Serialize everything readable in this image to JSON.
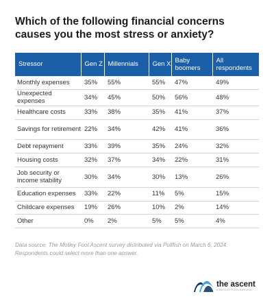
{
  "title": "Which of the following financial concerns causes you the most stress or anxiety?",
  "chart_data": {
    "type": "table",
    "columns": [
      "Stressor",
      "Gen Z",
      "Millennials",
      "Gen X",
      "Baby boomers",
      "All respondents"
    ],
    "rows": [
      {
        "stressor": "Monthly expenses",
        "values": [
          "35%",
          "55%",
          "55%",
          "47%",
          "49%"
        ]
      },
      {
        "stressor": "Unexpected expenses",
        "values": [
          "34%",
          "45%",
          "50%",
          "56%",
          "48%"
        ]
      },
      {
        "stressor": "Healthcare costs",
        "values": [
          "33%",
          "38%",
          "35%",
          "41%",
          "37%"
        ]
      },
      {
        "stressor": "Savings for retirement",
        "values": [
          "22%",
          "34%",
          "42%",
          "41%",
          "36%"
        ]
      },
      {
        "stressor": "Debt repayment",
        "values": [
          "33%",
          "39%",
          "35%",
          "24%",
          "32%"
        ]
      },
      {
        "stressor": "Housing costs",
        "values": [
          "32%",
          "37%",
          "34%",
          "22%",
          "31%"
        ]
      },
      {
        "stressor": "Job security or income stability",
        "values": [
          "30%",
          "34%",
          "30%",
          "13%",
          "26%"
        ]
      },
      {
        "stressor": "Education expenses",
        "values": [
          "33%",
          "22%",
          "11%",
          "5%",
          "15%"
        ]
      },
      {
        "stressor": "Childcare expenses",
        "values": [
          "19%",
          "26%",
          "10%",
          "2%",
          "14%"
        ]
      },
      {
        "stressor": "Other",
        "values": [
          "0%",
          "2%",
          "5%",
          "5%",
          "4%"
        ]
      }
    ]
  },
  "footnote": "Data source: The Motley Fool Ascent survey distributed via Pollfish on March 6, 2024. Respondents could select more than one answer.",
  "logo": {
    "name": "the ascent",
    "tagline": "A MOTLEY FOOL SERVICE",
    "icon": "ascent-waves-logo-icon",
    "colors": {
      "dark": "#0a2f5c",
      "light": "#3fa2e6"
    }
  },
  "colors": {
    "header_bg": "#1a5fa8",
    "header_text": "#ffffff",
    "row_divider": "#cfd5dc"
  }
}
